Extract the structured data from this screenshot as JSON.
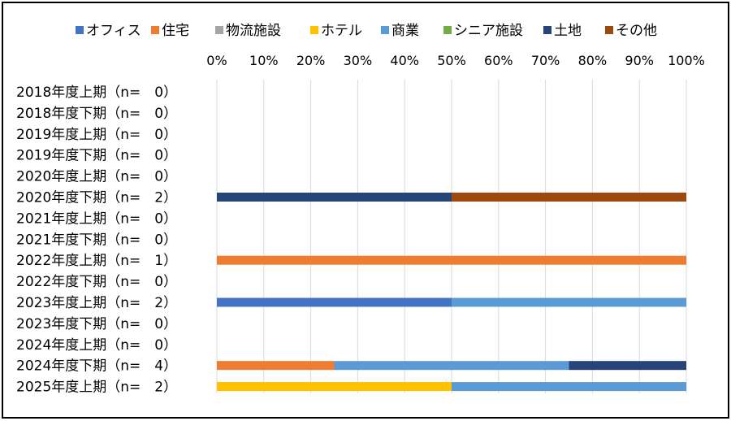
{
  "chart_data": {
    "type": "bar",
    "orientation": "horizontal",
    "stacked": "percent",
    "legend_position": "top",
    "grid": true,
    "xlim": [
      0,
      100
    ],
    "x_ticks": [
      "0%",
      "10%",
      "20%",
      "30%",
      "40%",
      "50%",
      "60%",
      "70%",
      "80%",
      "90%",
      "100%"
    ],
    "categories": [
      "2018年度上期（n=　0）",
      "2018年度下期（n=　0）",
      "2019年度上期（n=　0）",
      "2019年度下期（n=　0）",
      "2020年度上期（n=　0）",
      "2020年度下期（n=　2）",
      "2021年度上期（n=　0）",
      "2021年度下期（n=　0）",
      "2022年度上期（n=　1）",
      "2022年度下期（n=　0）",
      "2023年度上期（n=　2）",
      "2023年度下期（n=　0）",
      "2024年度上期（n=　0）",
      "2024年度下期（n=　4）",
      "2025年度上期（n=　2）"
    ],
    "series": [
      {
        "name": "オフィス",
        "color": "#4472C4",
        "values": [
          0,
          0,
          0,
          0,
          0,
          0,
          0,
          0,
          0,
          0,
          50,
          0,
          0,
          0,
          0
        ]
      },
      {
        "name": "住宅",
        "color": "#ED7D31",
        "values": [
          0,
          0,
          0,
          0,
          0,
          0,
          0,
          0,
          100,
          0,
          0,
          0,
          0,
          25,
          0
        ]
      },
      {
        "name": "物流施設",
        "color": "#A5A5A5",
        "values": [
          0,
          0,
          0,
          0,
          0,
          0,
          0,
          0,
          0,
          0,
          0,
          0,
          0,
          0,
          0
        ]
      },
      {
        "name": "ホテル",
        "color": "#FFC000",
        "values": [
          0,
          0,
          0,
          0,
          0,
          0,
          0,
          0,
          0,
          0,
          0,
          0,
          0,
          0,
          50
        ]
      },
      {
        "name": "商業",
        "color": "#5B9BD5",
        "values": [
          0,
          0,
          0,
          0,
          0,
          0,
          0,
          0,
          0,
          0,
          50,
          0,
          0,
          50,
          50
        ]
      },
      {
        "name": "シニア施設",
        "color": "#70AD47",
        "values": [
          0,
          0,
          0,
          0,
          0,
          0,
          0,
          0,
          0,
          0,
          0,
          0,
          0,
          0,
          0
        ]
      },
      {
        "name": "土地",
        "color": "#264478",
        "values": [
          0,
          0,
          0,
          0,
          0,
          50,
          0,
          0,
          0,
          0,
          0,
          0,
          0,
          25,
          0
        ]
      },
      {
        "name": "その他",
        "color": "#9E480E",
        "values": [
          0,
          0,
          0,
          0,
          0,
          50,
          0,
          0,
          0,
          0,
          0,
          0,
          0,
          0,
          0
        ]
      }
    ]
  }
}
